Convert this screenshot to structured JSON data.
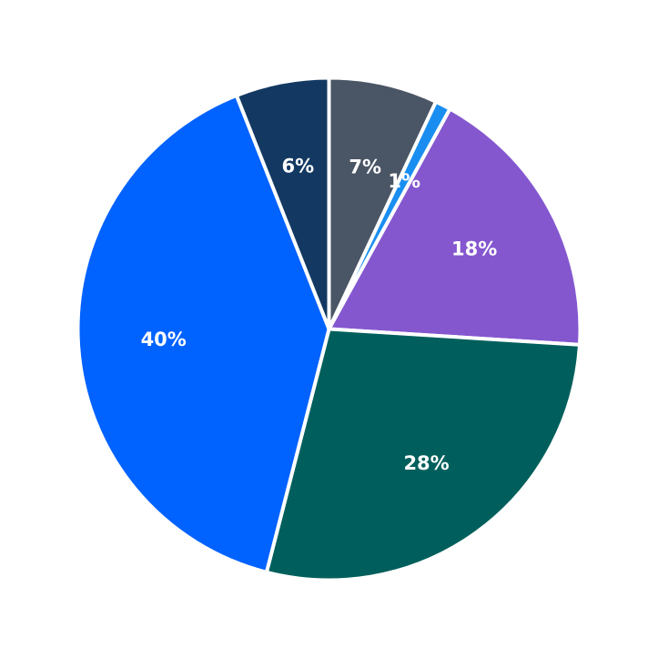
{
  "chart_data": {
    "type": "pie",
    "start_angle_deg": 0,
    "direction": "clockwise",
    "slices": [
      {
        "value": 7,
        "label": "7%",
        "color": "#4a5565"
      },
      {
        "value": 1,
        "label": "1%",
        "color": "#1a8ef0"
      },
      {
        "value": 18,
        "label": "18%",
        "color": "#8457cf"
      },
      {
        "value": 28,
        "label": "28%",
        "color": "#005f5c"
      },
      {
        "value": 40,
        "label": "40%",
        "color": "#0062ff"
      },
      {
        "value": 6,
        "label": "6%",
        "color": "#133962"
      }
    ],
    "slice_border_color": "#ffffff"
  }
}
